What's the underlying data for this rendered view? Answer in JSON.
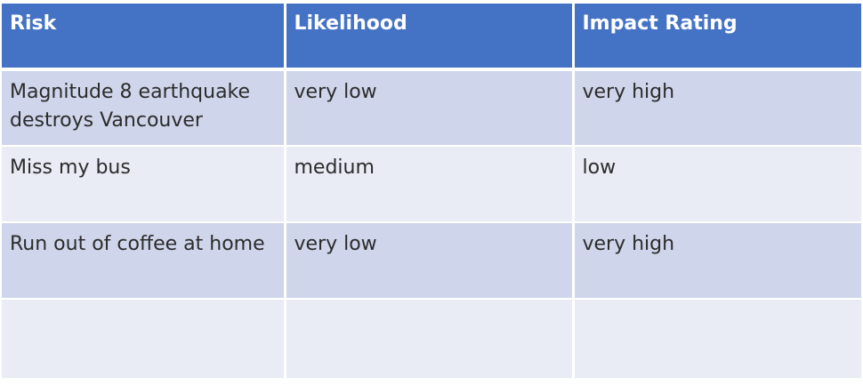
{
  "table": {
    "headers": [
      "Risk",
      "Likelihood",
      "Impact Rating"
    ],
    "rows": [
      [
        "Magnitude 8 earthquake destroys Vancouver",
        "very low",
        "very high"
      ],
      [
        "Miss my bus",
        "medium",
        "low"
      ],
      [
        "Run out of coffee at home",
        "very low",
        "very high"
      ],
      [
        "",
        "",
        ""
      ]
    ],
    "colors": {
      "header_bg": "#4472c4",
      "row_odd_bg": "#cfd5ea",
      "row_even_bg": "#e9ebf5"
    }
  }
}
